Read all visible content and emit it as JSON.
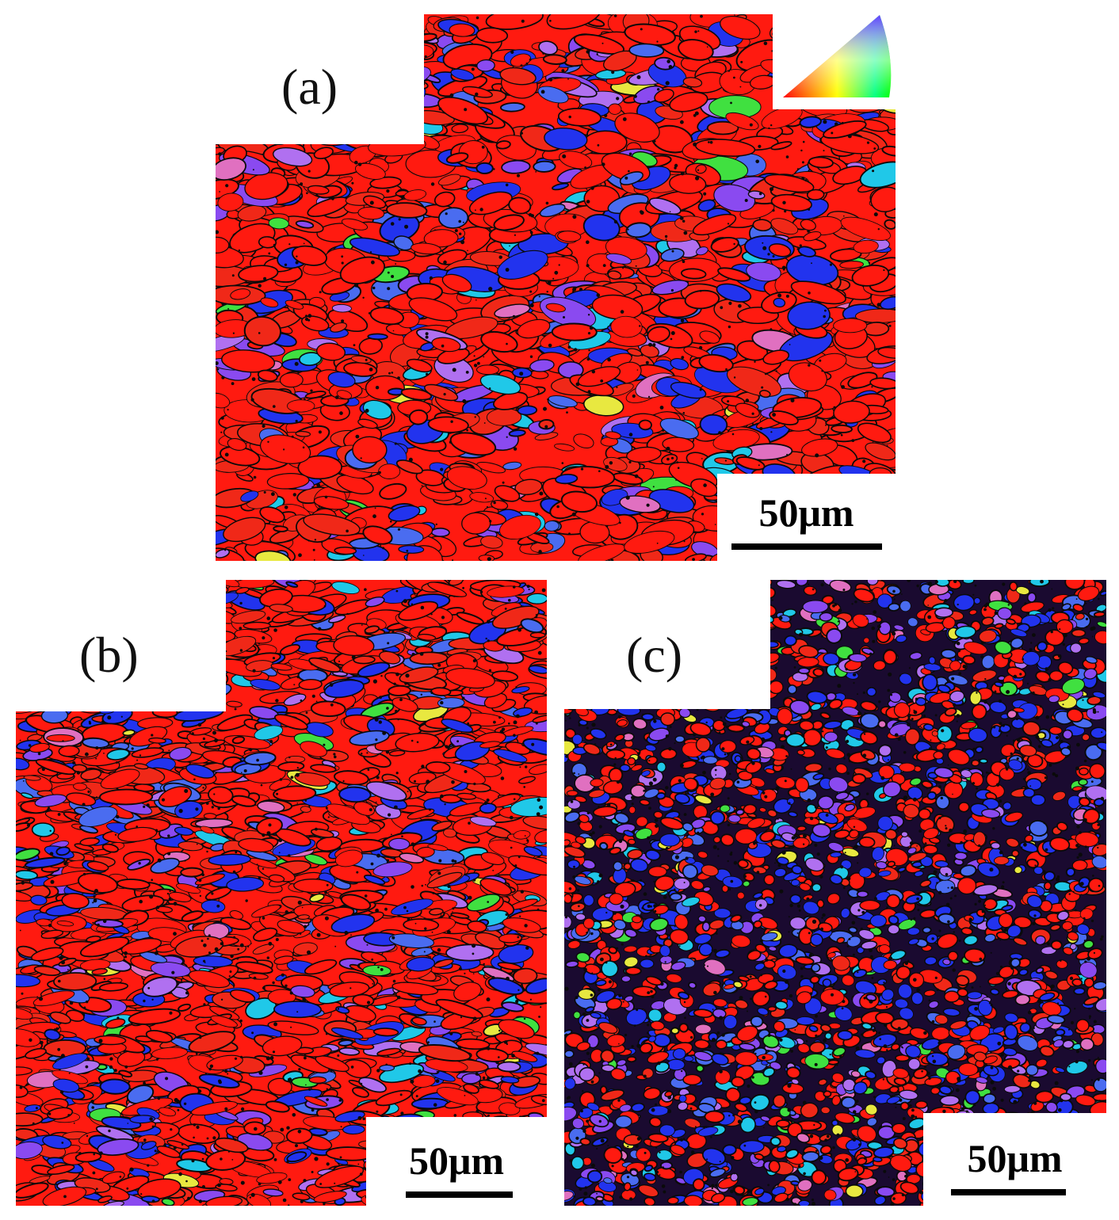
{
  "figure": {
    "panels": [
      {
        "id": "a",
        "label": "(a)",
        "scale_bar": "50μm",
        "seed": 11,
        "red_fraction": 0.72,
        "grain_style": "coarse-elongated"
      },
      {
        "id": "b",
        "label": "(b)",
        "scale_bar": "50μm",
        "seed": 29,
        "red_fraction": 0.7,
        "grain_style": "fine-elongated"
      },
      {
        "id": "c",
        "label": "(c)",
        "scale_bar": "50μm",
        "seed": 47,
        "red_fraction": 0.48,
        "grain_style": "fine-equiaxed"
      }
    ],
    "ipf_key": {
      "colors": [
        "#ff0000",
        "#00ff00",
        "#0000ff"
      ]
    },
    "palette": {
      "red": "#ff1a10",
      "red_alt": "#f02818",
      "blue": "#2233ee",
      "blue_light": "#4a6cf0",
      "purple": "#8a4af0",
      "violet": "#b070f0",
      "cyan": "#20c8e8",
      "green": "#40e040",
      "yellow": "#e8e840",
      "pink": "#e070c0",
      "grain_boundary": "#0a0a0a"
    }
  }
}
